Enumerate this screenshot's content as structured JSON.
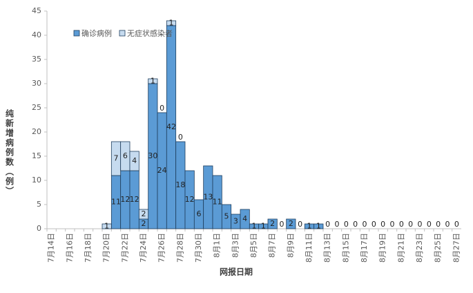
{
  "chart_data": {
    "type": "stacked-bar",
    "categories": [
      "7月14日",
      null,
      "7月16日",
      null,
      "7月18日",
      null,
      "7月20日",
      null,
      "7月22日",
      null,
      "7月24日",
      null,
      "7月26日",
      null,
      "7月28日",
      null,
      "7月30日",
      null,
      "8月1日",
      null,
      "8月3日",
      null,
      "8月5日",
      null,
      "8月7日",
      null,
      "8月9日",
      null,
      "8月11日",
      null,
      "8月13日",
      null,
      "8月15日",
      null,
      "8月17日",
      null,
      "8月19日",
      null,
      "8月21日",
      null,
      "8月23日",
      null,
      "8月25日",
      null,
      "8月27日"
    ],
    "series": [
      {
        "name": "确诊病例",
        "color": "#5b9bd5",
        "values": [
          null,
          null,
          null,
          null,
          null,
          null,
          null,
          11,
          12,
          12,
          2,
          30,
          24,
          42,
          18,
          12,
          6,
          13,
          11,
          5,
          3,
          4,
          1,
          1,
          2,
          0,
          2,
          0,
          1,
          1,
          0,
          0,
          0,
          0,
          0,
          0,
          0,
          0,
          0,
          0,
          0,
          0,
          0,
          0,
          0
        ]
      },
      {
        "name": "无症状感染者",
        "color": "#c6dbef",
        "values": [
          null,
          null,
          null,
          null,
          null,
          null,
          1,
          7,
          6,
          4,
          2,
          1,
          0,
          1,
          0,
          null,
          null,
          null,
          null,
          null,
          null,
          null,
          null,
          null,
          null,
          null,
          null,
          null,
          null,
          null,
          null,
          null,
          null,
          null,
          null,
          null,
          null,
          null,
          null,
          null,
          null,
          null,
          null,
          null,
          null
        ]
      }
    ],
    "ylim": [
      0,
      45
    ],
    "yticks": [
      0,
      5,
      10,
      15,
      20,
      25,
      30,
      35,
      40,
      45
    ],
    "y_label": "纯新增病例数（例）",
    "x_label": "网报日期",
    "legend": "upper-left"
  }
}
